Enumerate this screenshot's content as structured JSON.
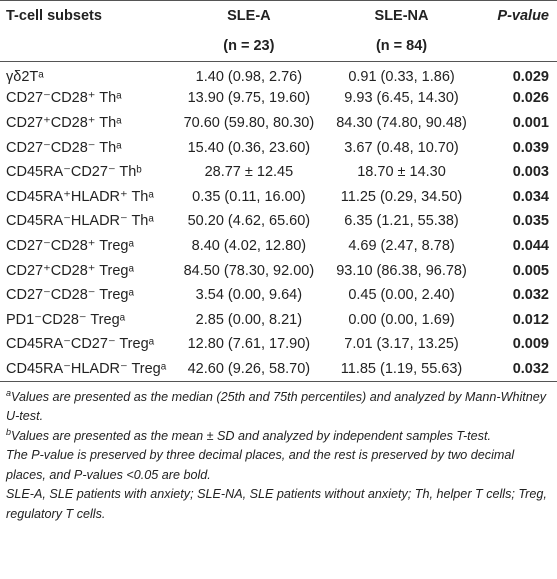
{
  "table": {
    "header": {
      "subsets": "T-cell subsets",
      "group_a": "SLE-A",
      "group_a_n": "(n = 23)",
      "group_b": "SLE-NA",
      "group_b_n": "(n = 84)",
      "p": "P-value"
    },
    "rows": [
      [
        "γδ2Tᵃ",
        "1.40 (0.98, 2.76)",
        "0.91 (0.33, 1.86)",
        "0.029"
      ],
      [
        "CD27⁻CD28⁺ Thᵃ",
        "13.90 (9.75, 19.60)",
        "9.93 (6.45, 14.30)",
        "0.026"
      ],
      [
        "CD27⁺CD28⁺ Thᵃ",
        "70.60 (59.80, 80.30)",
        "84.30 (74.80, 90.48)",
        "0.001"
      ],
      [
        "CD27⁻CD28⁻ Thᵃ",
        "15.40 (0.36, 23.60)",
        "3.67 (0.48, 10.70)",
        "0.039"
      ],
      [
        "CD45RA⁻CD27⁻ Thᵇ",
        "28.77 ± 12.45",
        "18.70 ± 14.30",
        "0.003"
      ],
      [
        "CD45RA⁺HLADR⁺ Thᵃ",
        "0.35 (0.11, 16.00)",
        "11.25 (0.29, 34.50)",
        "0.034"
      ],
      [
        "CD45RA⁻HLADR⁻ Thᵃ",
        "50.20 (4.62, 65.60)",
        "6.35 (1.21, 55.38)",
        "0.035"
      ],
      [
        "CD27⁻CD28⁺ Tregᵃ",
        "8.40 (4.02, 12.80)",
        "4.69 (2.47, 8.78)",
        "0.044"
      ],
      [
        "CD27⁺CD28⁺ Tregᵃ",
        "84.50 (78.30, 92.00)",
        "93.10 (86.38, 96.78)",
        "0.005"
      ],
      [
        "CD27⁻CD28⁻ Tregᵃ",
        "3.54 (0.00, 9.64)",
        "0.45 (0.00, 2.40)",
        "0.032"
      ],
      [
        "PD1⁻CD28⁻ Tregᵃ",
        "2.85 (0.00, 8.21)",
        "0.00 (0.00, 1.69)",
        "0.012"
      ],
      [
        "CD45RA⁻CD27⁻ Tregᵃ",
        "12.80 (7.61, 17.90)",
        "7.01 (3.17, 13.25)",
        "0.009"
      ],
      [
        "CD45RA⁻HLADR⁻ Tregᵃ",
        "42.60 (9.26, 58.70)",
        "11.85 (1.19, 55.63)",
        "0.032"
      ]
    ]
  },
  "footnotes": [
    {
      "marker": "a",
      "text": "Values are presented as the median (25th and 75th percentiles) and analyzed by Mann-Whitney U-test."
    },
    {
      "marker": "b",
      "text": "Values are presented as the mean ± SD and analyzed by independent samples T-test."
    },
    {
      "text": "The P-value is preserved by three decimal places, and the rest is preserved by two decimal places, and P-values <0.05 are bold."
    },
    {
      "text": "SLE-A, SLE patients with anxiety; SLE-NA, SLE patients without anxiety; Th, helper T cells; Treg, regulatory T cells."
    }
  ]
}
